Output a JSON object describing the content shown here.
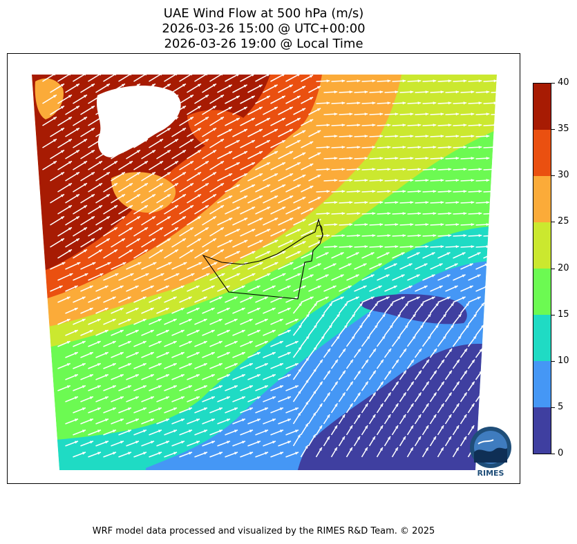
{
  "title": {
    "line1": "UAE Wind Flow at 500 hPa (m/s)",
    "line2": "2026-03-26 15:00 @ UTC+00:00",
    "line3": "2026-03-26 19:00 @ Local Time"
  },
  "colorbar": {
    "ticks": [
      "0",
      "5",
      "10",
      "15",
      "20",
      "25",
      "30",
      "35",
      "40"
    ],
    "bins": [
      {
        "range": "0-5",
        "color": "#3f3fa0"
      },
      {
        "range": "5-10",
        "color": "#4597f5"
      },
      {
        "range": "10-15",
        "color": "#1fdbc4"
      },
      {
        "range": "15-20",
        "color": "#6cfa52"
      },
      {
        "range": "20-25",
        "color": "#cbe82f"
      },
      {
        "range": "25-30",
        "color": "#fbab39"
      },
      {
        "range": "30-35",
        "color": "#ea5010"
      },
      {
        "range": "35-40",
        "color": "#a71b03"
      }
    ]
  },
  "map": {
    "region": "UAE",
    "vector_color": "#ffffff",
    "boundary_color": "#000000"
  },
  "logo": {
    "text": "RIMES",
    "icon": "rimes-logo-icon"
  },
  "footer": "WRF model data processed and visualized by the RIMES R&D Team. © 2025"
}
